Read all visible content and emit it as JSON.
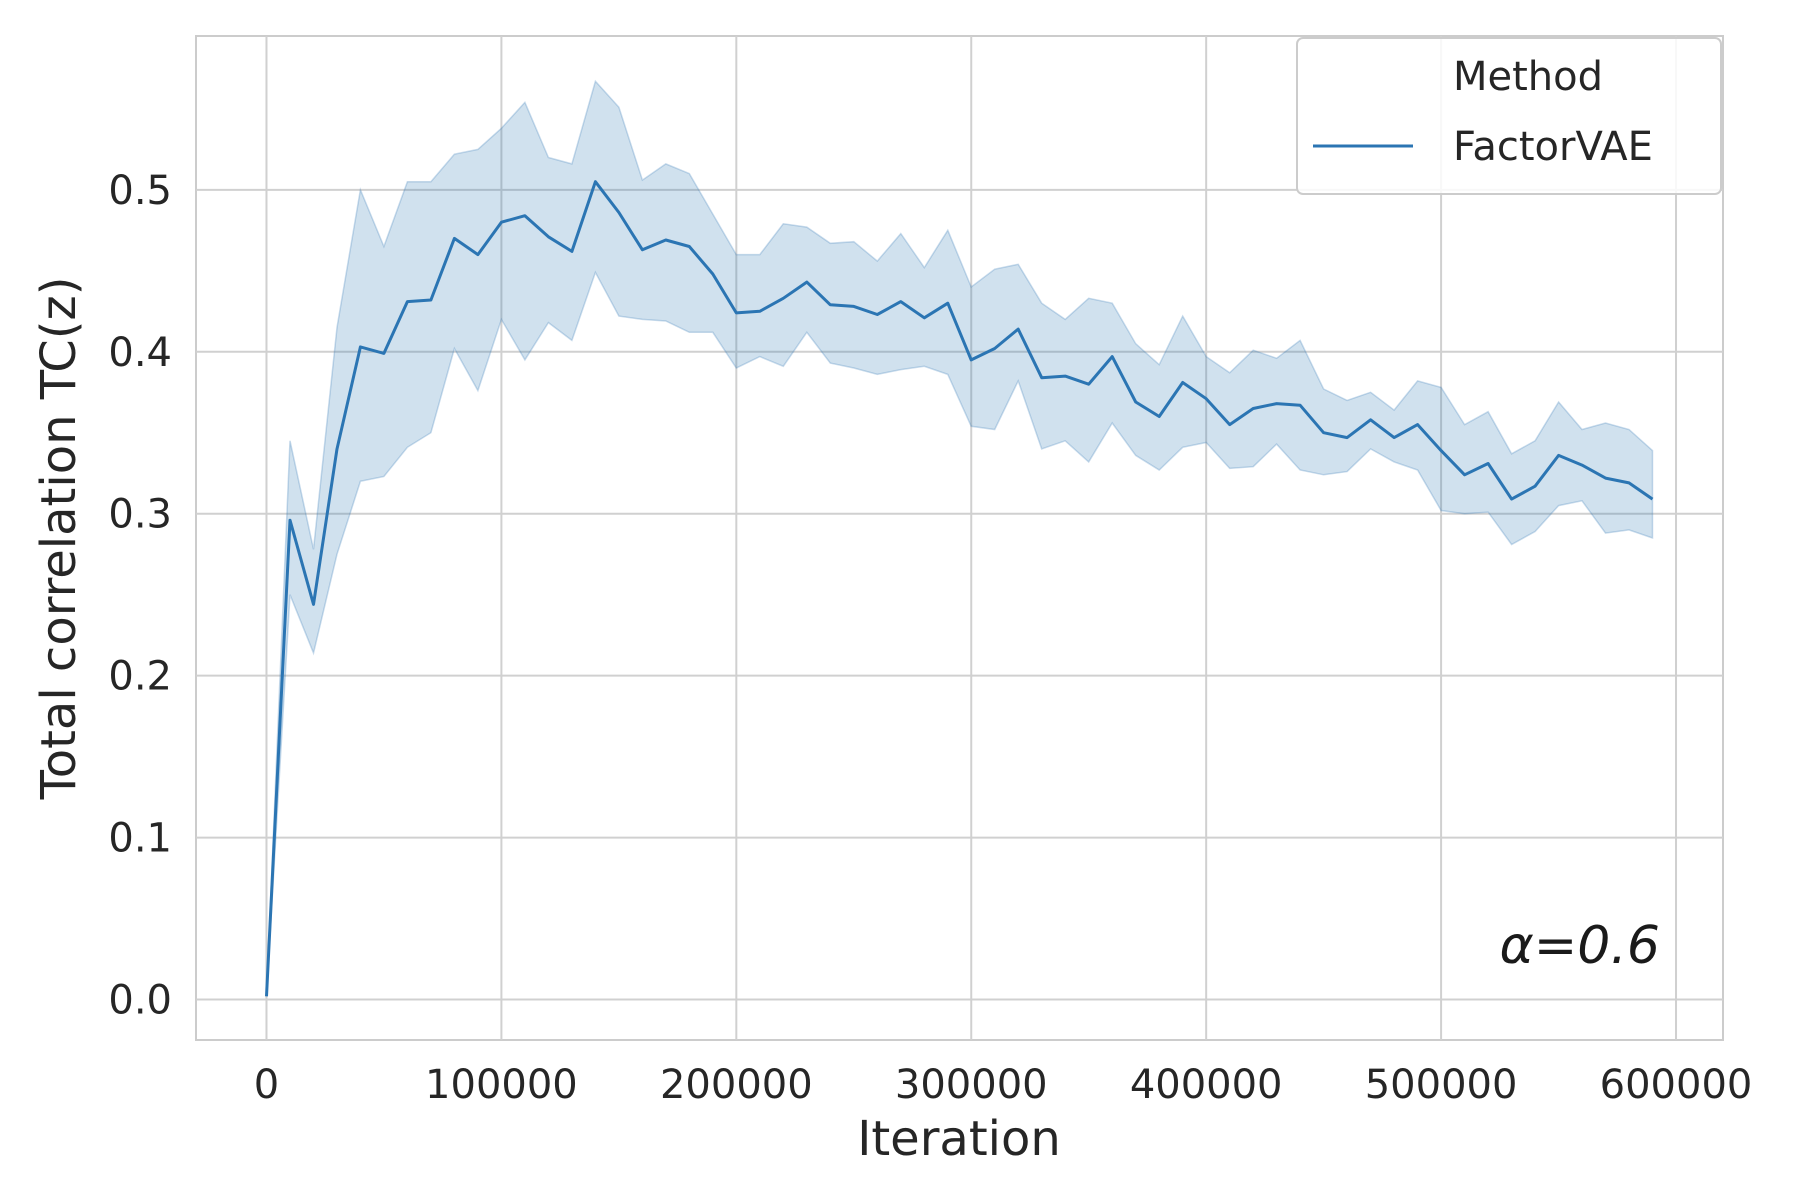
{
  "chart_data": {
    "type": "line",
    "xlabel": "Iteration",
    "ylabel": "Total correlation TC(z)",
    "xlim": [
      -30000,
      620000
    ],
    "ylim": [
      -0.025,
      0.595
    ],
    "xticks": [
      0,
      100000,
      200000,
      300000,
      400000,
      500000,
      600000
    ],
    "xtick_labels": [
      "0",
      "100000",
      "200000",
      "300000",
      "400000",
      "500000",
      "600000"
    ],
    "yticks": [
      0.0,
      0.1,
      0.2,
      0.3,
      0.4,
      0.5
    ],
    "ytick_labels": [
      "0.0",
      "0.1",
      "0.2",
      "0.3",
      "0.4",
      "0.5"
    ],
    "grid": true,
    "legend": {
      "title": "Method",
      "placement": "top-right"
    },
    "annotation": "α=0.6",
    "series": [
      {
        "name": "FactorVAE",
        "color": "#2b75b3",
        "band_color": "#2b75b3",
        "x": [
          0,
          10000,
          20000,
          30000,
          40000,
          50000,
          60000,
          70000,
          80000,
          90000,
          100000,
          110000,
          120000,
          130000,
          140000,
          150000,
          160000,
          170000,
          180000,
          190000,
          200000,
          210000,
          220000,
          230000,
          240000,
          250000,
          260000,
          270000,
          280000,
          290000,
          300000,
          310000,
          320000,
          330000,
          340000,
          350000,
          360000,
          370000,
          380000,
          390000,
          400000,
          410000,
          420000,
          430000,
          440000,
          450000,
          460000,
          470000,
          480000,
          490000,
          500000,
          510000,
          520000,
          530000,
          540000,
          550000,
          560000,
          570000,
          580000,
          590000
        ],
        "y": [
          0.002,
          0.296,
          0.244,
          0.34,
          0.403,
          0.399,
          0.431,
          0.432,
          0.47,
          0.46,
          0.48,
          0.484,
          0.471,
          0.462,
          0.505,
          0.486,
          0.463,
          0.469,
          0.465,
          0.448,
          0.424,
          0.425,
          0.433,
          0.443,
          0.429,
          0.428,
          0.423,
          0.431,
          0.421,
          0.43,
          0.395,
          0.402,
          0.414,
          0.384,
          0.385,
          0.38,
          0.397,
          0.369,
          0.36,
          0.381,
          0.371,
          0.355,
          0.365,
          0.368,
          0.367,
          0.35,
          0.347,
          0.358,
          0.347,
          0.355,
          0.339,
          0.324,
          0.331,
          0.309,
          0.317,
          0.336,
          0.33,
          0.322,
          0.319,
          0.309
        ],
        "upper": [
          0.002,
          0.345,
          0.278,
          0.415,
          0.5,
          0.465,
          0.505,
          0.505,
          0.522,
          0.525,
          0.538,
          0.554,
          0.52,
          0.516,
          0.567,
          0.551,
          0.506,
          0.516,
          0.51,
          0.485,
          0.46,
          0.46,
          0.479,
          0.477,
          0.467,
          0.468,
          0.456,
          0.473,
          0.452,
          0.475,
          0.44,
          0.451,
          0.454,
          0.43,
          0.42,
          0.433,
          0.43,
          0.405,
          0.392,
          0.422,
          0.397,
          0.387,
          0.401,
          0.396,
          0.407,
          0.377,
          0.37,
          0.375,
          0.364,
          0.382,
          0.378,
          0.355,
          0.363,
          0.337,
          0.345,
          0.369,
          0.352,
          0.356,
          0.352,
          0.339
        ],
        "lower": [
          0.002,
          0.25,
          0.214,
          0.275,
          0.32,
          0.323,
          0.341,
          0.35,
          0.402,
          0.376,
          0.42,
          0.395,
          0.418,
          0.407,
          0.449,
          0.422,
          0.42,
          0.419,
          0.412,
          0.412,
          0.39,
          0.397,
          0.391,
          0.412,
          0.393,
          0.39,
          0.386,
          0.389,
          0.391,
          0.386,
          0.354,
          0.352,
          0.382,
          0.34,
          0.345,
          0.332,
          0.356,
          0.336,
          0.327,
          0.341,
          0.344,
          0.328,
          0.329,
          0.343,
          0.327,
          0.324,
          0.326,
          0.34,
          0.332,
          0.327,
          0.302,
          0.3,
          0.301,
          0.281,
          0.289,
          0.305,
          0.308,
          0.288,
          0.29,
          0.285
        ]
      }
    ]
  }
}
